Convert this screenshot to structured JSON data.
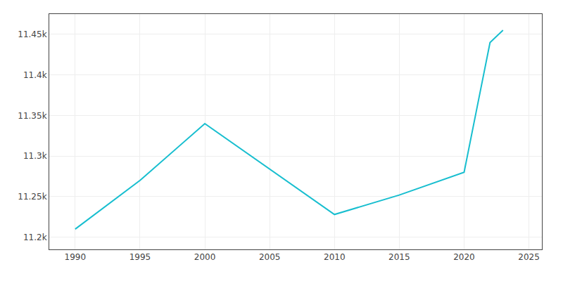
{
  "chart_data": {
    "type": "line",
    "x": [
      1990,
      1995,
      2000,
      2010,
      2015,
      2020,
      2021,
      2022,
      2023
    ],
    "values": [
      11210,
      11270,
      11340,
      11228,
      11252,
      11280,
      11360,
      11440,
      11455
    ],
    "color": "#17BECF",
    "xlim": [
      1988,
      2026
    ],
    "xticks": [
      1990,
      1995,
      2000,
      2005,
      2010,
      2015,
      2020,
      2025
    ],
    "ylim": [
      11185,
      11475
    ],
    "yticks": [
      {
        "value": 11200,
        "label": "11.2k"
      },
      {
        "value": 11250,
        "label": "11.25k"
      },
      {
        "value": 11300,
        "label": "11.3k"
      },
      {
        "value": 11350,
        "label": "11.35k"
      },
      {
        "value": 11400,
        "label": "11.4k"
      },
      {
        "value": 11450,
        "label": "11.45k"
      }
    ],
    "grid": true
  }
}
